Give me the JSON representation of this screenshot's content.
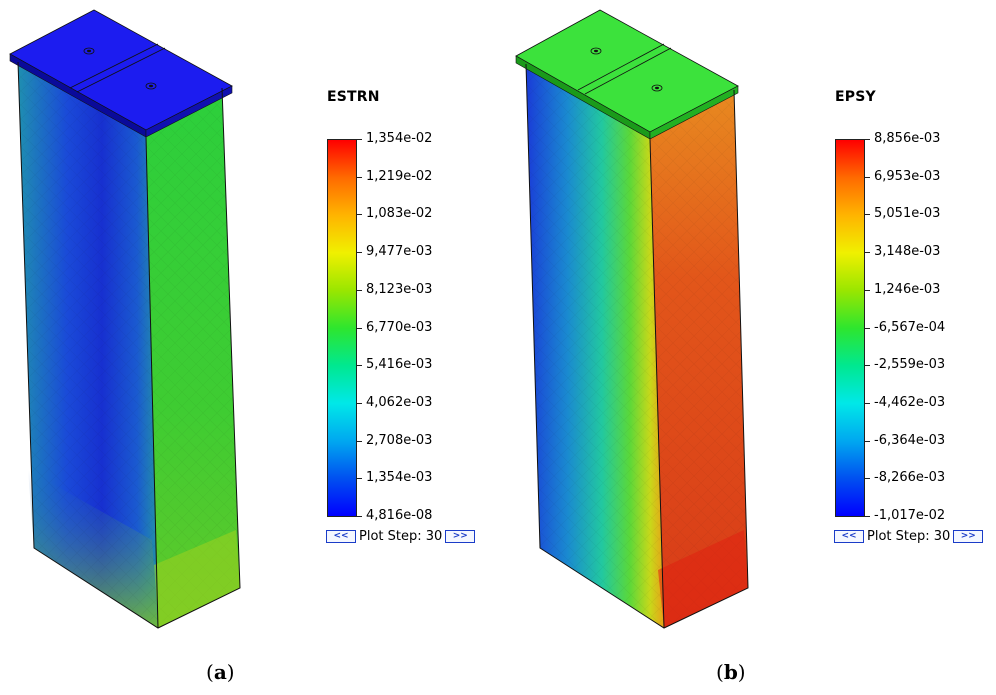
{
  "panels": [
    {
      "id": "a",
      "caption_letter": "a",
      "legend_title": "ESTRN",
      "legend_labels": [
        "1,354e-02",
        "1,219e-02",
        "1,083e-02",
        "9,477e-03",
        "8,123e-03",
        "6,770e-03",
        "5,416e-03",
        "4,062e-03",
        "2,708e-03",
        "1,354e-03",
        "4,816e-08"
      ],
      "plot_step": {
        "prev": "<<",
        "label": "Plot Step: 30",
        "next": ">>"
      },
      "colors": {
        "plate": "#1c1cf0",
        "left_face": "#2a7fb8",
        "right_face": "#36c23a"
      }
    },
    {
      "id": "b",
      "caption_letter": "b",
      "legend_title": "EPSY",
      "legend_labels": [
        "8,856e-03",
        "6,953e-03",
        "5,051e-03",
        "3,148e-03",
        "1,246e-03",
        "-6,567e-04",
        "-2,559e-03",
        "-4,462e-03",
        "-6,364e-03",
        "-8,266e-03",
        "-1,017e-02"
      ],
      "plot_step": {
        "prev": "<<",
        "label": "Plot Step: 30",
        "next": ">>"
      },
      "colors": {
        "plate": "#3ce23c",
        "left_face": "#2a6fd0",
        "right_face": "#e04a1c"
      }
    }
  ],
  "colormap": [
    "#ff0000",
    "#ff6a00",
    "#ffb400",
    "#f0f000",
    "#9ae600",
    "#2ee62e",
    "#00e890",
    "#00e8e8",
    "#00a8f0",
    "#0050f0",
    "#0000ff"
  ]
}
